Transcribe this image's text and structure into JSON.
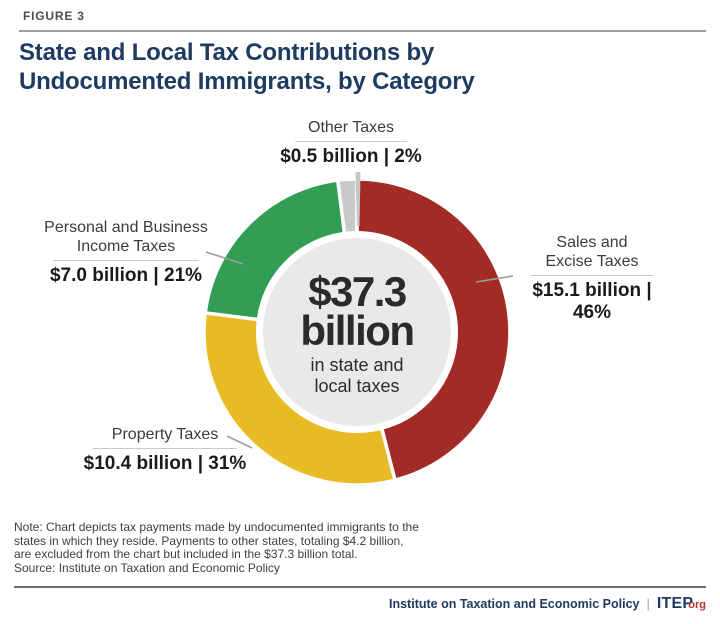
{
  "figure_label": "FIGURE 3",
  "title": {
    "line1": "State and Local Tax Contributions by",
    "line2": "Undocumented Immigrants, by Category"
  },
  "chart_data": {
    "type": "pie",
    "subtype": "donut",
    "title": "State and Local Tax Contributions by Undocumented Immigrants, by Category",
    "start_angle_deg": 0,
    "direction": "clockwise",
    "total": {
      "amount_billion": 37.3,
      "display_line1": "$37.3",
      "display_line2": "billion",
      "caption_line1": "in state and",
      "caption_line2": "local taxes"
    },
    "segments": [
      {
        "id": "sales-excise",
        "label_line1": "Sales and",
        "label_line2": "Excise Taxes",
        "amount_billion": 15.1,
        "percent_value": 46,
        "display": "$15.1 billion | 46%",
        "color": "#a22c25"
      },
      {
        "id": "property",
        "label_line1": "Property Taxes",
        "amount_billion": 10.4,
        "percent_value": 31,
        "display": "$10.4 billion | 31%",
        "color": "#e8ba23"
      },
      {
        "id": "income",
        "label_line1": "Personal and Business",
        "label_line2": "Income Taxes",
        "amount_billion": 7.0,
        "percent_value": 21,
        "display": "$7.0 billion | 21%",
        "color": "#319e53"
      },
      {
        "id": "other",
        "label_line1": "Other Taxes",
        "amount_billion": 0.5,
        "percent_value": 2,
        "display": "$0.5 billion | 2%",
        "color": "#c9c9c9"
      }
    ],
    "legend_position": "callout-labels",
    "center_fill": "#e9e9e8"
  },
  "note": {
    "lines": [
      "Note: Chart depicts tax payments made by undocumented immigrants to the",
      "states in which they reside. Payments to other states, totaling $4.2 billion,",
      "are excluded from the chart but included in the $37.3 billion total.",
      "Source: Institute on Taxation and Economic Policy"
    ]
  },
  "footer": {
    "org_name": "Institute on Taxation and Economic Policy",
    "separator": "|",
    "logo_main": "ITEP",
    "logo_suffix": "org"
  }
}
